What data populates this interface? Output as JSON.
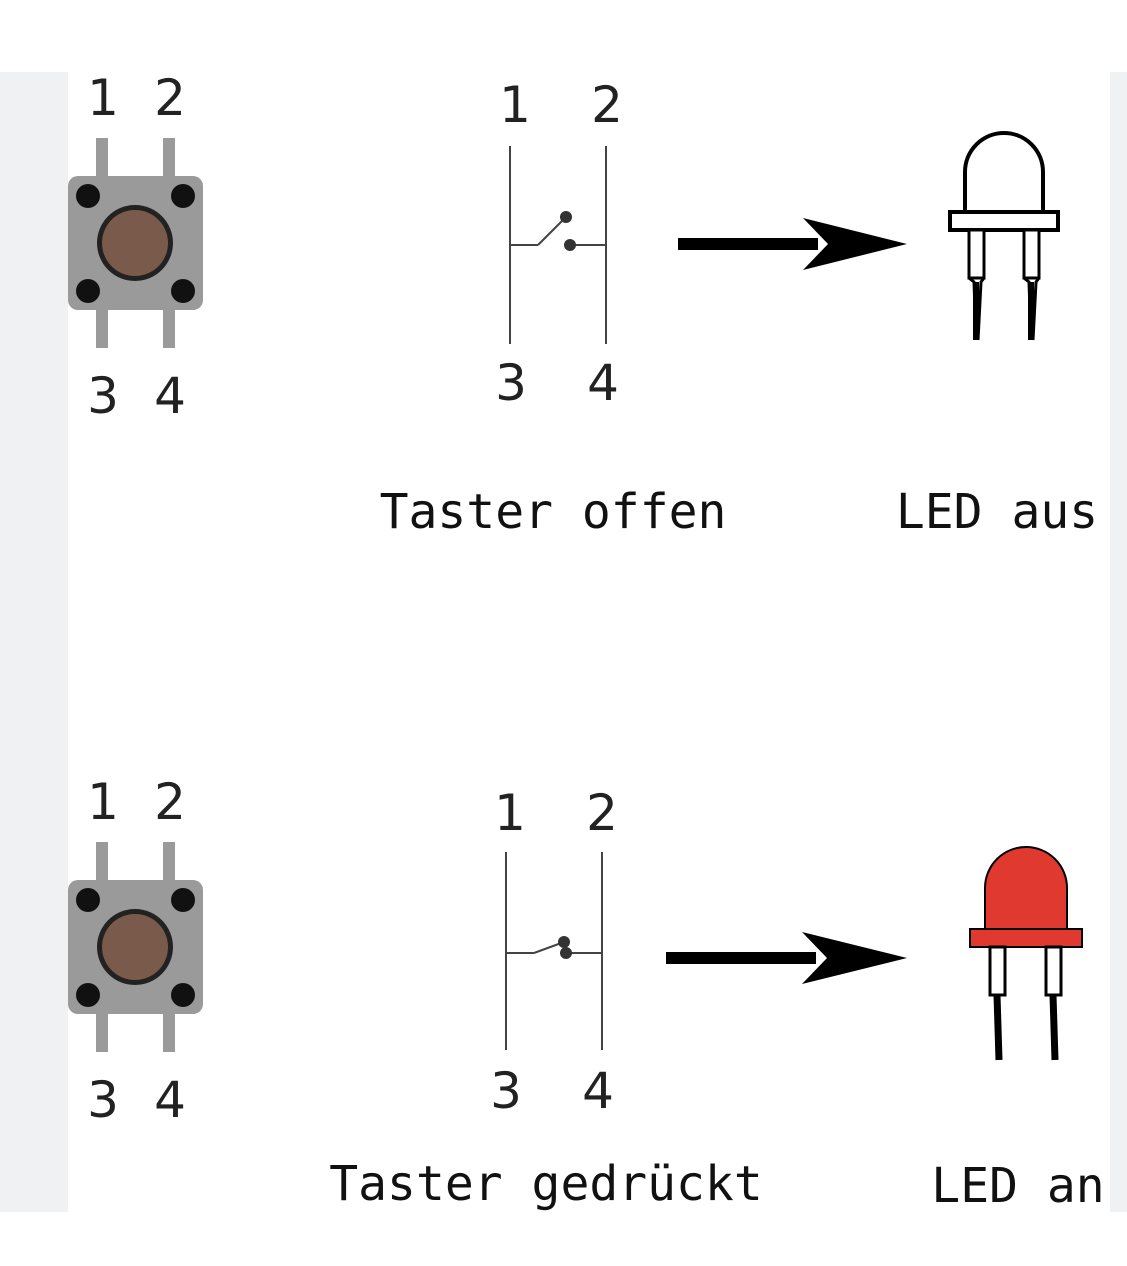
{
  "panels": [
    {
      "button_pins": {
        "top_left": "1",
        "top_right": "2",
        "bottom_left": "3",
        "bottom_right": "4"
      },
      "symbol_pins": {
        "top_left": "1",
        "top_right": "2",
        "bottom_left": "3",
        "bottom_right": "4"
      },
      "switch_caption": "Taster offen",
      "led_caption": "LED aus",
      "led_color": "#ffffff"
    },
    {
      "button_pins": {
        "top_left": "1",
        "top_right": "2",
        "bottom_left": "3",
        "bottom_right": "4"
      },
      "symbol_pins": {
        "top_left": "1",
        "top_right": "2",
        "bottom_left": "3",
        "bottom_right": "4"
      },
      "switch_caption": "Taster gedrückt",
      "led_caption": "LED an",
      "led_color": "#e03a30"
    }
  ],
  "colors": {
    "button_body": "#9a9a9a",
    "button_cap": "#7a5a4a",
    "side_panel": "#eff1f3"
  }
}
